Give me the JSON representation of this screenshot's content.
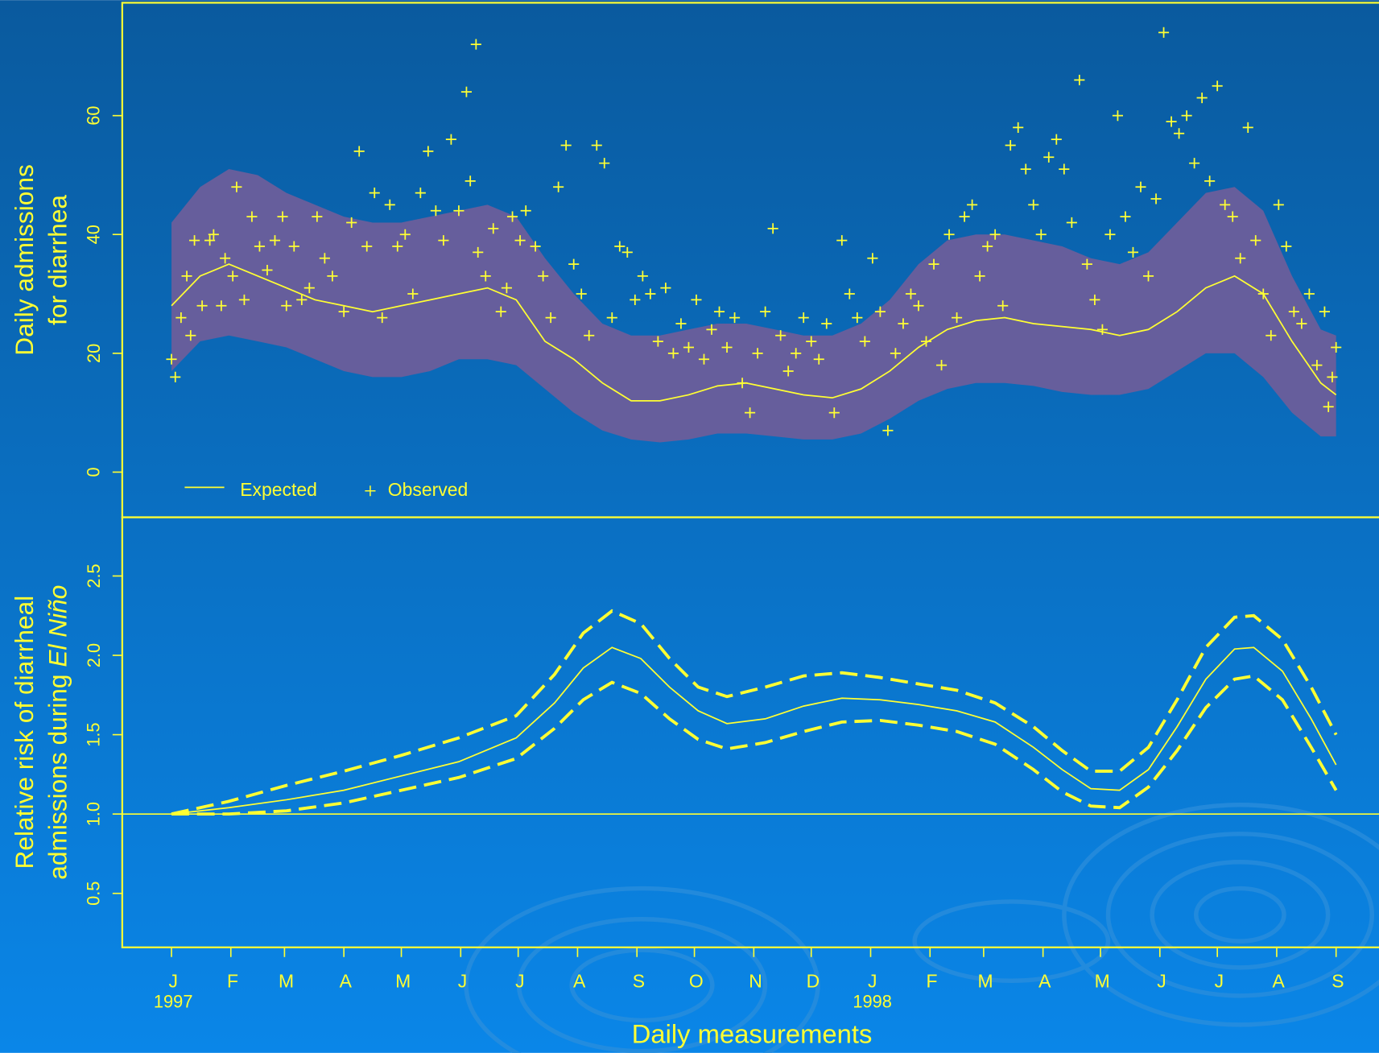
{
  "chart_data": [
    {
      "type": "line",
      "ylabel": [
        "Daily admissions",
        "for diarrhea"
      ],
      "xlim": [
        -25.7,
        630.4
      ],
      "ylim": [
        -7.6,
        79
      ],
      "yticks": [
        0,
        20,
        40,
        60
      ],
      "legend": "bottom-left",
      "x": [
        0,
        15,
        30,
        45,
        60,
        75,
        90,
        105,
        120,
        135,
        150,
        165,
        180,
        195,
        210,
        225,
        240,
        255,
        270,
        285,
        300,
        315,
        330,
        345,
        360,
        375,
        390,
        405,
        420,
        435,
        450,
        465,
        480,
        495,
        510,
        525,
        540,
        555,
        570,
        585,
        600,
        608
      ],
      "band": {
        "color": "#665e9c",
        "upper": [
          42,
          48,
          51,
          50,
          47,
          45,
          43,
          42,
          42,
          43,
          44,
          45,
          43,
          36,
          30,
          25,
          23,
          23,
          24,
          25,
          25,
          24,
          23,
          23,
          25,
          29,
          35,
          39,
          40,
          40,
          39,
          38,
          36,
          35,
          37,
          42,
          47,
          48,
          44,
          33,
          24,
          23
        ],
        "lower": [
          17,
          22,
          23,
          22,
          21,
          19,
          17,
          16,
          16,
          17,
          19,
          19,
          18,
          14,
          10,
          7,
          5.5,
          5,
          5.5,
          6.5,
          6.5,
          6,
          5.5,
          5.5,
          6.5,
          9,
          12,
          14,
          15,
          15,
          14.5,
          13.5,
          13,
          13,
          14,
          17,
          20,
          20,
          16,
          10,
          6,
          6
        ]
      },
      "series": [
        {
          "name": "Expected",
          "color": "#ffff33",
          "values": [
            28,
            33,
            35,
            33,
            31,
            29,
            28,
            27,
            28,
            29,
            30,
            31,
            29,
            22,
            19,
            15,
            12,
            12,
            13,
            14.5,
            15,
            14,
            13,
            12.5,
            14,
            17,
            21,
            24,
            25.5,
            26,
            25,
            24.5,
            24,
            23,
            24,
            27,
            31,
            33,
            30,
            22,
            15,
            13
          ]
        },
        {
          "name": "Observed",
          "color": "#ffff33",
          "marker": "+",
          "x": [
            0,
            2,
            5,
            8,
            10,
            12,
            16,
            20,
            22,
            26,
            28,
            32,
            34,
            38,
            42,
            46,
            50,
            54,
            58,
            60,
            64,
            68,
            72,
            76,
            80,
            84,
            90,
            94,
            98,
            102,
            106,
            110,
            114,
            118,
            122,
            126,
            130,
            134,
            138,
            142,
            146,
            150,
            154,
            156,
            159,
            160,
            164,
            168,
            172,
            175,
            178,
            182,
            185,
            190,
            194,
            198,
            202,
            206,
            210,
            214,
            218,
            222,
            226,
            230,
            234,
            238,
            242,
            246,
            250,
            254,
            258,
            262,
            266,
            270,
            274,
            278,
            282,
            286,
            290,
            294,
            298,
            302,
            306,
            310,
            314,
            318,
            322,
            326,
            330,
            334,
            338,
            342,
            346,
            350,
            354,
            358,
            362,
            366,
            370,
            374,
            378,
            382,
            386,
            390,
            394,
            398,
            402,
            406,
            410,
            414,
            418,
            422,
            426,
            430,
            434,
            438,
            442,
            446,
            450,
            454,
            458,
            462,
            466,
            470,
            474,
            478,
            482,
            486,
            490,
            494,
            498,
            502,
            506,
            510,
            514,
            518,
            522,
            526,
            530,
            534,
            538,
            542,
            546,
            550,
            554,
            558,
            562,
            566,
            570,
            574,
            578,
            582,
            586,
            590,
            594,
            598,
            602,
            604,
            606,
            608
          ],
          "values": [
            19,
            16,
            26,
            33,
            23,
            39,
            28,
            39,
            40,
            28,
            36,
            33,
            48,
            29,
            43,
            38,
            34,
            39,
            43,
            28,
            38,
            29,
            31,
            43,
            36,
            33,
            27,
            42,
            54,
            38,
            47,
            26,
            45,
            38,
            40,
            30,
            47,
            54,
            44,
            39,
            56,
            44,
            64,
            49,
            72,
            37,
            33,
            41,
            27,
            31,
            43,
            39,
            44,
            38,
            33,
            26,
            48,
            55,
            35,
            30,
            23,
            55,
            52,
            26,
            38,
            37,
            29,
            33,
            30,
            22,
            31,
            20,
            25,
            21,
            29,
            19,
            24,
            27,
            21,
            26,
            15,
            10,
            20,
            27,
            41,
            23,
            17,
            20,
            26,
            22,
            19,
            25,
            10,
            39,
            30,
            26,
            22,
            36,
            27,
            7,
            20,
            25,
            30,
            28,
            22,
            35,
            18,
            40,
            26,
            43,
            45,
            33,
            38,
            40,
            28,
            55,
            58,
            51,
            45,
            40,
            53,
            56,
            51,
            42,
            66,
            35,
            29,
            24,
            40,
            60,
            43,
            37,
            48,
            33,
            46,
            74,
            59,
            57,
            60,
            52,
            63,
            49,
            65,
            45,
            43,
            36,
            58,
            39,
            30,
            23,
            45,
            38,
            27,
            25,
            30,
            18,
            27,
            11,
            16,
            21
          ]
        }
      ]
    },
    {
      "type": "line",
      "ylabel": [
        "Relative risk of diarrheal",
        "admissions during "
      ],
      "ylabel_italic": "El Niño",
      "xlabel": "Daily measurements",
      "xlim": [
        -25.7,
        630.4
      ],
      "ylim": [
        0.16,
        2.87
      ],
      "yticks": [
        0.5,
        {
          "value": 1,
          "label": "1.0"
        },
        1.5,
        {
          "value": 2,
          "label": "2.0"
        },
        2.5
      ],
      "reference_line": 1,
      "xticks": [
        {
          "value": 0,
          "label": "J"
        },
        {
          "value": 31,
          "label": "F"
        },
        {
          "value": 59,
          "label": "M"
        },
        {
          "value": 90,
          "label": "A"
        },
        {
          "value": 120,
          "label": "M"
        },
        {
          "value": 151,
          "label": "J"
        },
        {
          "value": 181,
          "label": "J"
        },
        {
          "value": 212,
          "label": "A"
        },
        {
          "value": 243,
          "label": "S"
        },
        {
          "value": 273,
          "label": "O"
        },
        {
          "value": 304,
          "label": "N"
        },
        {
          "value": 334,
          "label": "D"
        },
        {
          "value": 365,
          "label": "J"
        },
        {
          "value": 396,
          "label": "F"
        },
        {
          "value": 424,
          "label": "M"
        },
        {
          "value": 455,
          "label": "A"
        },
        {
          "value": 485,
          "label": "M"
        },
        {
          "value": 516,
          "label": "J"
        },
        {
          "value": 546,
          "label": "J"
        },
        {
          "value": 577,
          "label": "A"
        },
        {
          "value": 608,
          "label": "S"
        }
      ],
      "year_labels": [
        {
          "value": 0,
          "label": "1997"
        },
        {
          "value": 365,
          "label": "1998"
        }
      ],
      "x": [
        0,
        30,
        60,
        90,
        120,
        150,
        180,
        200,
        215,
        230,
        245,
        260,
        275,
        290,
        310,
        330,
        350,
        370,
        390,
        410,
        430,
        450,
        465,
        480,
        495,
        510,
        525,
        540,
        555,
        565,
        580,
        595,
        608
      ],
      "series": [
        {
          "color": "#ffff33",
          "dashed": false,
          "values": [
            1.0,
            1.04,
            1.09,
            1.15,
            1.24,
            1.33,
            1.48,
            1.7,
            1.92,
            2.05,
            1.98,
            1.8,
            1.65,
            1.57,
            1.6,
            1.68,
            1.73,
            1.72,
            1.69,
            1.65,
            1.58,
            1.42,
            1.28,
            1.16,
            1.15,
            1.28,
            1.55,
            1.85,
            2.04,
            2.05,
            1.9,
            1.6,
            1.31
          ]
        },
        {
          "color": "#ffff33",
          "dashed": true,
          "values": [
            1.0,
            1.08,
            1.18,
            1.27,
            1.37,
            1.48,
            1.62,
            1.88,
            2.14,
            2.28,
            2.2,
            1.98,
            1.8,
            1.74,
            1.8,
            1.87,
            1.89,
            1.86,
            1.82,
            1.78,
            1.7,
            1.55,
            1.4,
            1.27,
            1.27,
            1.42,
            1.72,
            2.05,
            2.24,
            2.25,
            2.1,
            1.8,
            1.5
          ]
        },
        {
          "color": "#ffff33",
          "dashed": true,
          "values": [
            1.0,
            1.0,
            1.02,
            1.07,
            1.15,
            1.23,
            1.35,
            1.54,
            1.72,
            1.83,
            1.76,
            1.6,
            1.47,
            1.41,
            1.45,
            1.52,
            1.58,
            1.59,
            1.56,
            1.52,
            1.44,
            1.28,
            1.14,
            1.05,
            1.04,
            1.17,
            1.4,
            1.67,
            1.85,
            1.87,
            1.72,
            1.42,
            1.15
          ]
        }
      ]
    }
  ]
}
